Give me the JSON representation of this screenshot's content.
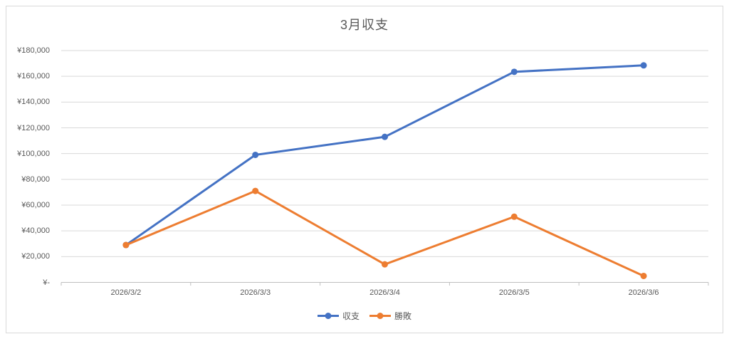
{
  "chart": {
    "title": "3月収支"
  },
  "colors": {
    "gridline": "#d9d9d9",
    "axis_line": "#bfbfbf",
    "tick_mark": "#bfbfbf",
    "label_text": "#595959",
    "series_blue": "#4472C4",
    "series_orange": "#ED7D31"
  },
  "chart_data": {
    "type": "line",
    "title": "3月収支",
    "categories": [
      "2026/3/2",
      "2026/3/3",
      "2026/3/4",
      "2026/3/5",
      "2026/3/6"
    ],
    "series": [
      {
        "name": "収支",
        "color": "#4472C4",
        "values": [
          29000,
          99000,
          113000,
          163500,
          168500
        ]
      },
      {
        "name": "勝敗",
        "color": "#ED7D31",
        "values": [
          29000,
          71000,
          14000,
          51000,
          5000
        ]
      }
    ],
    "xlabel": "",
    "ylabel": "",
    "ylim": [
      0,
      180000
    ],
    "ytick_step": 20000,
    "ytick_labels": [
      "¥-",
      "¥20,000",
      "¥40,000",
      "¥60,000",
      "¥80,000",
      "¥100,000",
      "¥120,000",
      "¥140,000",
      "¥160,000",
      "¥180,000"
    ],
    "grid": true,
    "legend_position": "bottom",
    "marker": "circle"
  }
}
